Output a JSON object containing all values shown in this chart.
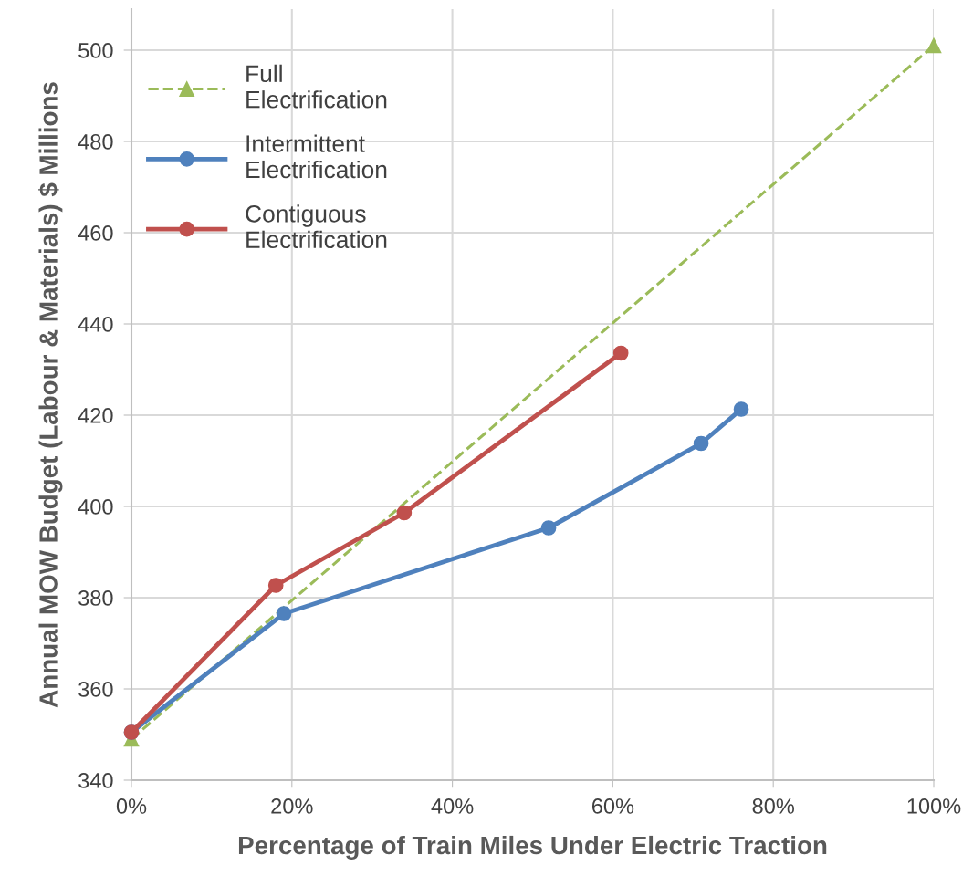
{
  "chart_data": {
    "type": "line",
    "xlabel": "Percentage of Train Miles Under Electric Traction",
    "ylabel": "Annual MOW Budget (Labour & Materials) $ Millions",
    "xlim": [
      0,
      100
    ],
    "ylim": [
      340,
      509
    ],
    "xticks": [
      {
        "value": 0,
        "label": "0%"
      },
      {
        "value": 20,
        "label": "20%"
      },
      {
        "value": 40,
        "label": "40%"
      },
      {
        "value": 60,
        "label": "60%"
      },
      {
        "value": 80,
        "label": "80%"
      },
      {
        "value": 100,
        "label": "100%"
      }
    ],
    "yticks": [
      340,
      360,
      380,
      400,
      420,
      440,
      460,
      480,
      500
    ],
    "grid": true,
    "legend": "top left",
    "series": [
      {
        "name": "Full Electrification",
        "color": "#9bbb59",
        "marker": "triangle",
        "line_style": "dashed",
        "x": [
          0,
          100
        ],
        "values": [
          349,
          501
        ]
      },
      {
        "name": "Intermittent Electrification",
        "color": "#4f81bd",
        "marker": "circle",
        "line_style": "solid",
        "x": [
          0,
          19,
          52,
          71,
          76
        ],
        "values": [
          350.5,
          376.5,
          395.3,
          413.8,
          421.3
        ]
      },
      {
        "name": "Contiguous Electrification",
        "color": "#c0504d",
        "marker": "circle",
        "line_style": "solid",
        "x": [
          0,
          18,
          34,
          61
        ],
        "values": [
          350.5,
          382.7,
          398.6,
          433.6
        ]
      }
    ]
  }
}
